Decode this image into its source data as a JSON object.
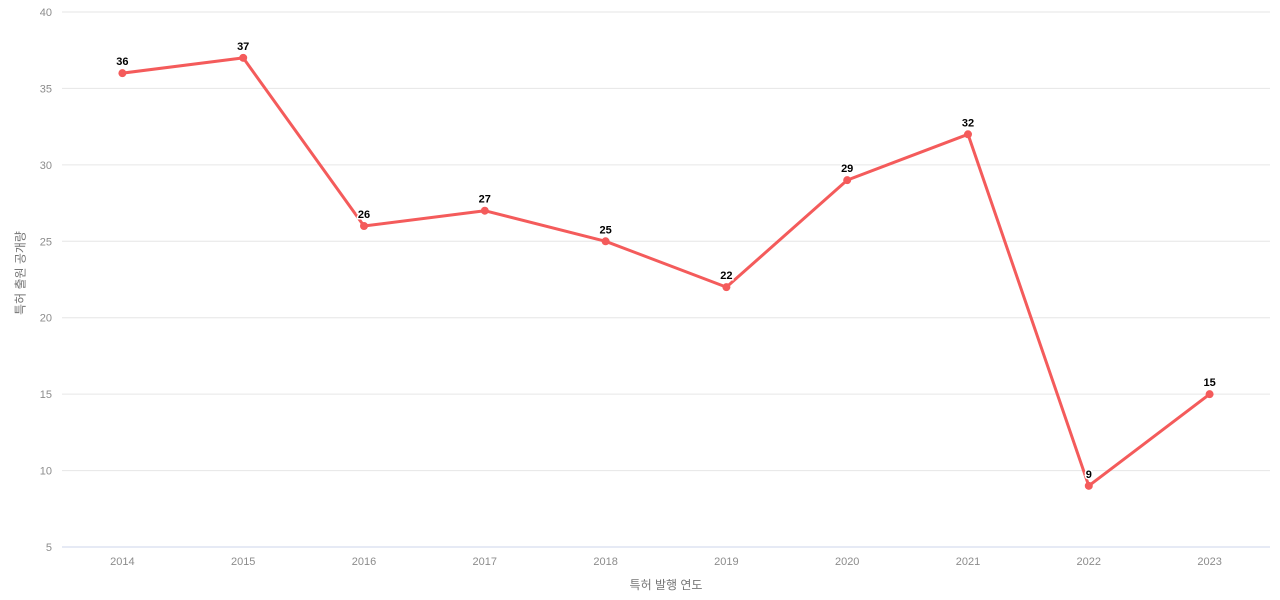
{
  "chart_data": {
    "type": "line",
    "title": "",
    "xlabel": "특허 발행 연도",
    "ylabel": "특허 출원 공개량",
    "categories": [
      "2014",
      "2015",
      "2016",
      "2017",
      "2018",
      "2019",
      "2020",
      "2021",
      "2022",
      "2023"
    ],
    "series": [
      {
        "name": "특허 출원 공개량",
        "values": [
          36,
          37,
          26,
          27,
          25,
          22,
          29,
          32,
          9,
          15
        ]
      }
    ],
    "ylim": [
      5,
      40
    ],
    "ytick_step": 5,
    "yticks": [
      5,
      10,
      15,
      20,
      25,
      30,
      35,
      40
    ],
    "grid": true,
    "legend_visible": false,
    "data_labels_visible": true,
    "colors": {
      "line": "#f45b5b",
      "marker": "#f45b5b",
      "grid": "#e6e6e6",
      "axis_line": "#ccd6eb",
      "tick_label": "#8c8c8c",
      "axis_title": "#757575",
      "data_label": "#000000",
      "background": "#ffffff"
    }
  }
}
